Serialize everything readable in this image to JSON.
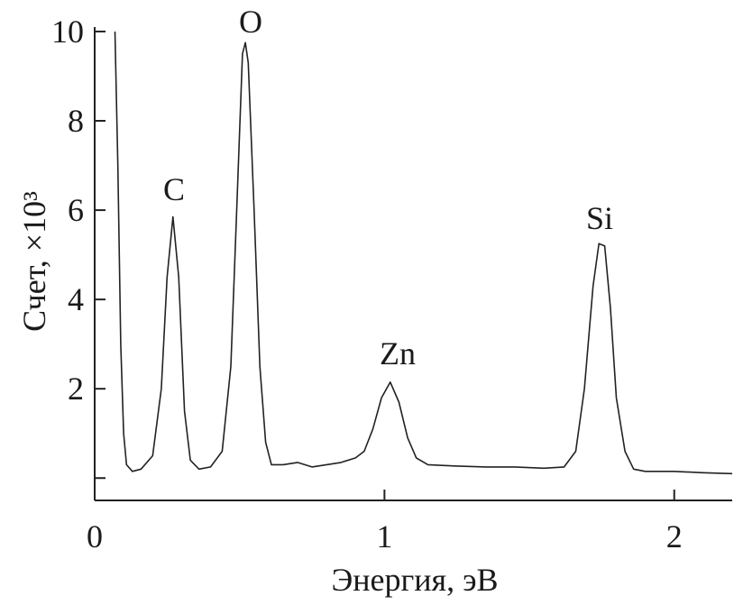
{
  "chart_data": {
    "type": "line",
    "x_label": "Энергия, эВ",
    "y_label": "Счет, ×10³",
    "xlim": [
      0,
      2.2
    ],
    "xticks": [
      0,
      1,
      2
    ],
    "ylim": [
      -0.5,
      10.1
    ],
    "yticks": [
      {
        "value": 0,
        "label": null
      },
      2,
      4,
      6,
      8,
      10
    ],
    "annotations": [
      "C",
      "O",
      "Zn",
      "Si"
    ],
    "series": [
      {
        "color": "#222222",
        "x": [
          0.07,
          0.08,
          0.09,
          0.1,
          0.11,
          0.13,
          0.16,
          0.2,
          0.23,
          0.25,
          0.27,
          0.29,
          0.31,
          0.33,
          0.36,
          0.4,
          0.44,
          0.47,
          0.49,
          0.51,
          0.52,
          0.53,
          0.55,
          0.57,
          0.59,
          0.61,
          0.65,
          0.7,
          0.75,
          0.8,
          0.85,
          0.9,
          0.93,
          0.96,
          0.99,
          1.02,
          1.05,
          1.08,
          1.11,
          1.15,
          1.25,
          1.35,
          1.45,
          1.55,
          1.62,
          1.66,
          1.69,
          1.72,
          1.74,
          1.76,
          1.78,
          1.8,
          1.83,
          1.86,
          1.9,
          2.0,
          2.1,
          2.2
        ],
        "values": [
          10.0,
          7,
          3,
          1,
          0.3,
          0.15,
          0.2,
          0.5,
          2,
          4.5,
          5.85,
          4.5,
          1.5,
          0.4,
          0.2,
          0.25,
          0.6,
          2.5,
          6,
          9.5,
          9.75,
          9.3,
          6,
          2.5,
          0.8,
          0.3,
          0.3,
          0.35,
          0.25,
          0.3,
          0.35,
          0.45,
          0.6,
          1.1,
          1.8,
          2.15,
          1.7,
          0.9,
          0.45,
          0.3,
          0.27,
          0.25,
          0.25,
          0.22,
          0.25,
          0.6,
          2,
          4.3,
          5.25,
          5.2,
          3.8,
          1.8,
          0.6,
          0.2,
          0.15,
          0.15,
          0.12,
          0.1
        ]
      }
    ]
  }
}
